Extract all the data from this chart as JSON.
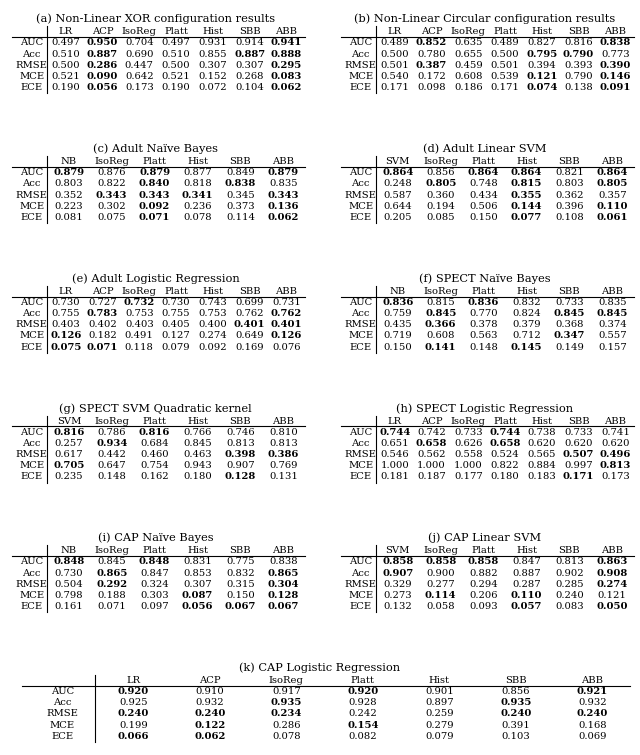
{
  "panels": [
    {
      "label": "(a) Non-Linear XOR configuration results",
      "cols": [
        "LR",
        "ACP",
        "IsoReg",
        "Platt",
        "Hist",
        "SBB",
        "ABB"
      ],
      "rows": [
        "AUC",
        "Acc",
        "RMSE",
        "MCE",
        "ECE"
      ],
      "values": [
        [
          0.497,
          0.95,
          0.704,
          0.497,
          0.931,
          0.914,
          0.941
        ],
        [
          0.51,
          0.887,
          0.69,
          0.51,
          0.855,
          0.887,
          0.888
        ],
        [
          0.5,
          0.286,
          0.447,
          0.5,
          0.307,
          0.307,
          0.295
        ],
        [
          0.521,
          0.09,
          0.642,
          0.521,
          0.152,
          0.268,
          0.083
        ],
        [
          0.19,
          0.056,
          0.173,
          0.19,
          0.072,
          0.104,
          0.062
        ]
      ],
      "bold": [
        [
          false,
          true,
          false,
          false,
          false,
          false,
          true
        ],
        [
          false,
          true,
          false,
          false,
          false,
          true,
          true
        ],
        [
          false,
          true,
          false,
          false,
          false,
          false,
          true
        ],
        [
          false,
          true,
          false,
          false,
          false,
          false,
          true
        ],
        [
          false,
          true,
          false,
          false,
          false,
          false,
          true
        ]
      ]
    },
    {
      "label": "(b) Non-Linear Circular configuration results",
      "cols": [
        "LR",
        "ACP",
        "IsoReg",
        "Platt",
        "Hist",
        "SBB",
        "ABB"
      ],
      "rows": [
        "AUC",
        "Acc",
        "RMSE",
        "MCE",
        "ECE"
      ],
      "values": [
        [
          0.489,
          0.852,
          0.635,
          0.489,
          0.827,
          0.816,
          0.838
        ],
        [
          0.5,
          0.78,
          0.655,
          0.5,
          0.795,
          0.79,
          0.773
        ],
        [
          0.501,
          0.387,
          0.459,
          0.501,
          0.394,
          0.393,
          0.39
        ],
        [
          0.54,
          0.172,
          0.608,
          0.539,
          0.121,
          0.79,
          0.146
        ],
        [
          0.171,
          0.098,
          0.186,
          0.171,
          0.074,
          0.138,
          0.091
        ]
      ],
      "bold": [
        [
          false,
          true,
          false,
          false,
          false,
          false,
          true
        ],
        [
          false,
          false,
          false,
          false,
          true,
          true,
          false
        ],
        [
          false,
          true,
          false,
          false,
          false,
          false,
          true
        ],
        [
          false,
          false,
          false,
          false,
          true,
          false,
          true
        ],
        [
          false,
          false,
          false,
          false,
          true,
          false,
          true
        ]
      ]
    },
    {
      "label": "(c) Adult Naïve Bayes",
      "cols": [
        "NB",
        "IsoReg",
        "Platt",
        "Hist",
        "SBB",
        "ABB"
      ],
      "rows": [
        "AUC",
        "Acc",
        "RMSE",
        "MCE",
        "ECE"
      ],
      "values": [
        [
          0.879,
          0.876,
          0.879,
          0.877,
          0.849,
          0.879
        ],
        [
          0.803,
          0.822,
          0.84,
          0.818,
          0.838,
          0.835
        ],
        [
          0.352,
          0.343,
          0.343,
          0.341,
          0.345,
          0.343
        ],
        [
          0.223,
          0.302,
          0.092,
          0.236,
          0.373,
          0.136
        ],
        [
          0.081,
          0.075,
          0.071,
          0.078,
          0.114,
          0.062
        ]
      ],
      "bold": [
        [
          true,
          false,
          true,
          false,
          false,
          true
        ],
        [
          false,
          false,
          true,
          false,
          true,
          false
        ],
        [
          false,
          true,
          true,
          true,
          false,
          true
        ],
        [
          false,
          false,
          true,
          false,
          false,
          true
        ],
        [
          false,
          false,
          true,
          false,
          false,
          true
        ]
      ]
    },
    {
      "label": "(d) Adult Linear SVM",
      "cols": [
        "SVM",
        "IsoReg",
        "Platt",
        "Hist",
        "SBB",
        "ABB"
      ],
      "rows": [
        "AUC",
        "Acc",
        "RMSE",
        "MCE",
        "ECE"
      ],
      "values": [
        [
          0.864,
          0.856,
          0.864,
          0.864,
          0.821,
          0.864
        ],
        [
          0.248,
          0.805,
          0.748,
          0.815,
          0.803,
          0.805
        ],
        [
          0.587,
          0.36,
          0.434,
          0.355,
          0.362,
          0.357
        ],
        [
          0.644,
          0.194,
          0.506,
          0.144,
          0.396,
          0.11
        ],
        [
          0.205,
          0.085,
          0.15,
          0.077,
          0.108,
          0.061
        ]
      ],
      "bold": [
        [
          true,
          false,
          true,
          true,
          false,
          true
        ],
        [
          false,
          true,
          false,
          true,
          false,
          true
        ],
        [
          false,
          false,
          false,
          true,
          false,
          false
        ],
        [
          false,
          false,
          false,
          true,
          false,
          true
        ],
        [
          false,
          false,
          false,
          true,
          false,
          true
        ]
      ]
    },
    {
      "label": "(e) Adult Logistic Regression",
      "cols": [
        "LR",
        "ACP",
        "IsoReg",
        "Platt",
        "Hist",
        "SBB",
        "ABB"
      ],
      "rows": [
        "AUC",
        "Acc",
        "RMSE",
        "MCE",
        "ECE"
      ],
      "values": [
        [
          0.73,
          0.727,
          0.732,
          0.73,
          0.743,
          0.699,
          0.731
        ],
        [
          0.755,
          0.783,
          0.753,
          0.755,
          0.753,
          0.762,
          0.762
        ],
        [
          0.403,
          0.402,
          0.403,
          0.405,
          0.4,
          0.401,
          0.401
        ],
        [
          0.126,
          0.182,
          0.491,
          0.127,
          0.274,
          0.649,
          0.126
        ],
        [
          0.075,
          0.071,
          0.118,
          0.079,
          0.092,
          0.169,
          0.076
        ]
      ],
      "bold": [
        [
          false,
          false,
          true,
          false,
          false,
          false,
          false
        ],
        [
          false,
          true,
          false,
          false,
          false,
          false,
          true
        ],
        [
          false,
          false,
          false,
          false,
          false,
          true,
          true
        ],
        [
          true,
          false,
          false,
          false,
          false,
          false,
          true
        ],
        [
          true,
          true,
          false,
          false,
          false,
          false,
          false
        ]
      ]
    },
    {
      "label": "(f) SPECT Naïve Bayes",
      "cols": [
        "NB",
        "IsoReg",
        "Platt",
        "Hist",
        "SBB",
        "ABB"
      ],
      "rows": [
        "AUC",
        "Acc",
        "RMSE",
        "MCE",
        "ECE"
      ],
      "values": [
        [
          0.836,
          0.815,
          0.836,
          0.832,
          0.733,
          0.835
        ],
        [
          0.759,
          0.845,
          0.77,
          0.824,
          0.845,
          0.845
        ],
        [
          0.435,
          0.366,
          0.378,
          0.379,
          0.368,
          0.374
        ],
        [
          0.719,
          0.608,
          0.563,
          0.712,
          0.347,
          0.557
        ],
        [
          0.15,
          0.141,
          0.148,
          0.145,
          0.149,
          0.157
        ]
      ],
      "bold": [
        [
          true,
          false,
          true,
          false,
          false,
          false
        ],
        [
          false,
          true,
          false,
          false,
          true,
          true
        ],
        [
          false,
          true,
          false,
          false,
          false,
          false
        ],
        [
          false,
          false,
          false,
          false,
          true,
          false
        ],
        [
          false,
          true,
          false,
          true,
          false,
          false
        ]
      ]
    },
    {
      "label": "(g) SPECT SVM Quadratic kernel",
      "cols": [
        "SVM",
        "IsoReg",
        "Platt",
        "Hist",
        "SBB",
        "ABB"
      ],
      "rows": [
        "AUC",
        "Acc",
        "RMSE",
        "MCE",
        "ECE"
      ],
      "values": [
        [
          0.816,
          0.786,
          0.816,
          0.766,
          0.746,
          0.81
        ],
        [
          0.257,
          0.934,
          0.684,
          0.845,
          0.813,
          0.813
        ],
        [
          0.617,
          0.442,
          0.46,
          0.463,
          0.398,
          0.386
        ],
        [
          0.705,
          0.647,
          0.754,
          0.943,
          0.907,
          0.769
        ],
        [
          0.235,
          0.148,
          0.162,
          0.18,
          0.128,
          0.131
        ]
      ],
      "bold": [
        [
          true,
          false,
          true,
          false,
          false,
          false
        ],
        [
          false,
          true,
          false,
          false,
          false,
          false
        ],
        [
          false,
          false,
          false,
          false,
          true,
          true
        ],
        [
          true,
          false,
          false,
          false,
          false,
          false
        ],
        [
          false,
          false,
          false,
          false,
          true,
          false
        ]
      ]
    },
    {
      "label": "(h) SPECT Logistic Regression",
      "cols": [
        "LR",
        "ACP",
        "IsoReg",
        "Platt",
        "Hist",
        "SBB",
        "ABB"
      ],
      "rows": [
        "AUC",
        "Acc",
        "RMSE",
        "MCE",
        "ECE"
      ],
      "values": [
        [
          0.744,
          0.742,
          0.733,
          0.744,
          0.738,
          0.733,
          0.741
        ],
        [
          0.651,
          0.658,
          0.626,
          0.658,
          0.62,
          0.62,
          0.62
        ],
        [
          0.546,
          0.562,
          0.558,
          0.524,
          0.565,
          0.507,
          0.496
        ],
        [
          1.0,
          1.0,
          1.0,
          0.822,
          0.884,
          0.997,
          0.813
        ],
        [
          0.181,
          0.187,
          0.177,
          0.18,
          0.183,
          0.171,
          0.173
        ]
      ],
      "bold": [
        [
          true,
          false,
          false,
          true,
          false,
          false,
          false
        ],
        [
          false,
          true,
          false,
          true,
          false,
          false,
          false
        ],
        [
          false,
          false,
          false,
          false,
          false,
          true,
          true
        ],
        [
          false,
          false,
          false,
          false,
          false,
          false,
          true
        ],
        [
          false,
          false,
          false,
          false,
          false,
          true,
          false
        ]
      ]
    },
    {
      "label": "(i) CAP Naïve Bayes",
      "cols": [
        "NB",
        "IsoReg",
        "Platt",
        "Hist",
        "SBB",
        "ABB"
      ],
      "rows": [
        "AUC",
        "Acc",
        "RMSE",
        "MCE",
        "ECE"
      ],
      "values": [
        [
          0.848,
          0.845,
          0.848,
          0.831,
          0.775,
          0.838
        ],
        [
          0.73,
          0.865,
          0.847,
          0.853,
          0.832,
          0.865
        ],
        [
          0.504,
          0.292,
          0.324,
          0.307,
          0.315,
          0.304
        ],
        [
          0.798,
          0.188,
          0.303,
          0.087,
          0.15,
          0.128
        ],
        [
          0.161,
          0.071,
          0.097,
          0.056,
          0.067,
          0.067
        ]
      ],
      "bold": [
        [
          true,
          false,
          true,
          false,
          false,
          false
        ],
        [
          false,
          true,
          false,
          false,
          false,
          true
        ],
        [
          false,
          true,
          false,
          false,
          false,
          true
        ],
        [
          false,
          false,
          false,
          true,
          false,
          true
        ],
        [
          false,
          false,
          false,
          true,
          true,
          true
        ]
      ]
    },
    {
      "label": "(j) CAP Linear SVM",
      "cols": [
        "SVM",
        "IsoReg",
        "Platt",
        "Hist",
        "SBB",
        "ABB"
      ],
      "rows": [
        "AUC",
        "Acc",
        "RMSE",
        "MCE",
        "ECE"
      ],
      "values": [
        [
          0.858,
          0.858,
          0.858,
          0.847,
          0.813,
          0.863
        ],
        [
          0.907,
          0.9,
          0.882,
          0.887,
          0.902,
          0.908
        ],
        [
          0.329,
          0.277,
          0.294,
          0.287,
          0.285,
          0.274
        ],
        [
          0.273,
          0.114,
          0.206,
          0.11,
          0.24,
          0.121
        ],
        [
          0.132,
          0.058,
          0.093,
          0.057,
          0.083,
          0.05
        ]
      ],
      "bold": [
        [
          true,
          true,
          true,
          false,
          false,
          true
        ],
        [
          true,
          false,
          false,
          false,
          false,
          true
        ],
        [
          false,
          false,
          false,
          false,
          false,
          true
        ],
        [
          false,
          true,
          false,
          true,
          false,
          false
        ],
        [
          false,
          false,
          false,
          true,
          false,
          true
        ]
      ]
    },
    {
      "label": "(k) CAP Logistic Regression",
      "cols": [
        "LR",
        "ACP",
        "IsoReg",
        "Platt",
        "Hist",
        "SBB",
        "ABB"
      ],
      "rows": [
        "AUC",
        "Acc",
        "RMSE",
        "MCE",
        "ECE"
      ],
      "values": [
        [
          0.92,
          0.91,
          0.917,
          0.92,
          0.901,
          0.856,
          0.921
        ],
        [
          0.925,
          0.932,
          0.935,
          0.928,
          0.897,
          0.935,
          0.932
        ],
        [
          0.24,
          0.24,
          0.234,
          0.242,
          0.259,
          0.24,
          0.24
        ],
        [
          0.199,
          0.122,
          0.286,
          0.154,
          0.279,
          0.391,
          0.168
        ],
        [
          0.066,
          0.062,
          0.078,
          0.082,
          0.079,
          0.103,
          0.069
        ]
      ],
      "bold": [
        [
          true,
          false,
          false,
          true,
          false,
          false,
          true
        ],
        [
          false,
          false,
          true,
          false,
          false,
          true,
          false
        ],
        [
          true,
          true,
          true,
          false,
          false,
          true,
          true
        ],
        [
          false,
          true,
          false,
          true,
          false,
          false,
          false
        ],
        [
          true,
          true,
          false,
          false,
          false,
          false,
          false
        ]
      ]
    }
  ]
}
